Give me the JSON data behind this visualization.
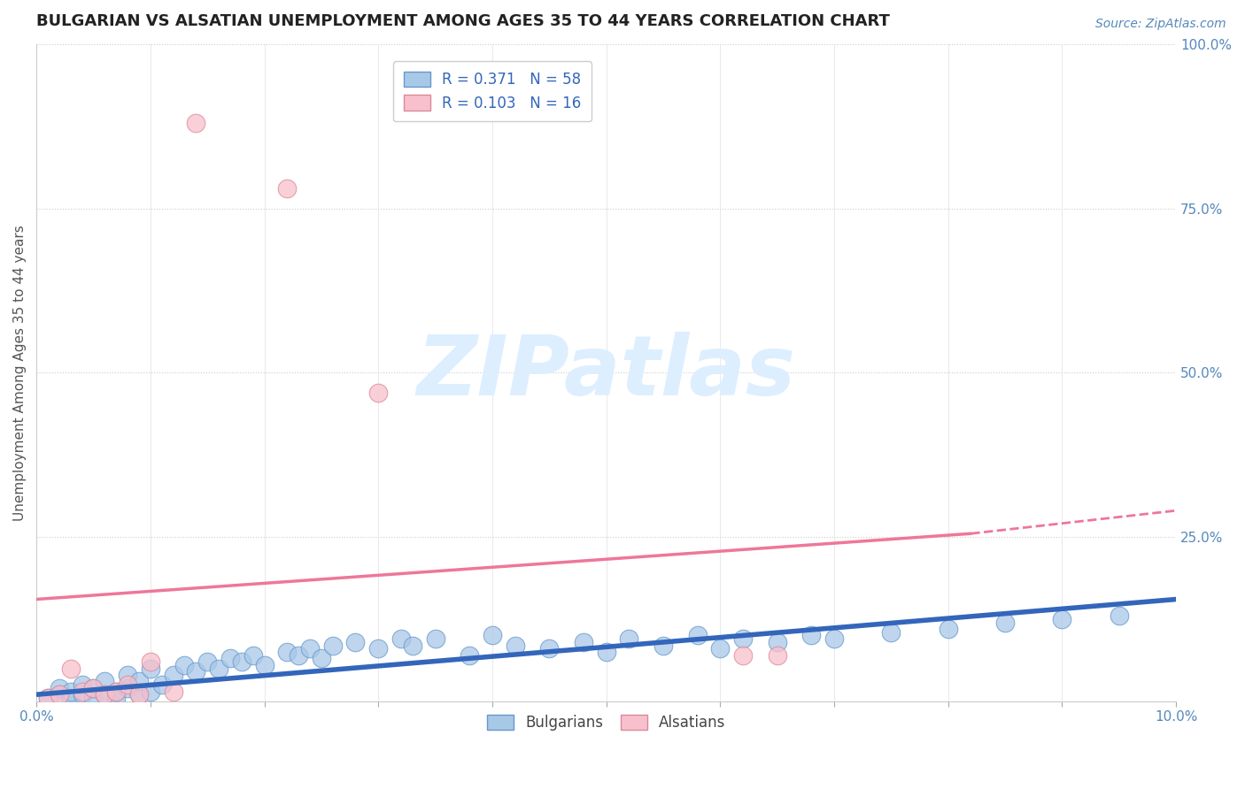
{
  "title": "BULGARIAN VS ALSATIAN UNEMPLOYMENT AMONG AGES 35 TO 44 YEARS CORRELATION CHART",
  "source_text": "Source: ZipAtlas.com",
  "ylabel": "Unemployment Among Ages 35 to 44 years",
  "xlim": [
    0.0,
    0.1
  ],
  "ylim": [
    0.0,
    1.0
  ],
  "yticks_right": [
    0.0,
    0.25,
    0.5,
    0.75,
    1.0
  ],
  "ytick_labels_right": [
    "",
    "25.0%",
    "50.0%",
    "75.0%",
    "100.0%"
  ],
  "legend_entries": [
    {
      "label": "R = 0.371   N = 58"
    },
    {
      "label": "R = 0.103   N = 16"
    }
  ],
  "watermark": "ZIPatlas",
  "watermark_color": "#ddeeff",
  "title_fontsize": 13,
  "axis_label_fontsize": 11,
  "tick_fontsize": 11,
  "blue_color": "#a8c8e8",
  "blue_edge": "#6699cc",
  "blue_line_color": "#3366bb",
  "pink_color": "#f8c0cc",
  "pink_edge": "#dd8899",
  "pink_line_color": "#ee7799",
  "blue_scatter": [
    [
      0.001,
      0.005
    ],
    [
      0.002,
      0.01
    ],
    [
      0.002,
      0.02
    ],
    [
      0.003,
      0.005
    ],
    [
      0.003,
      0.015
    ],
    [
      0.004,
      0.01
    ],
    [
      0.004,
      0.025
    ],
    [
      0.005,
      0.005
    ],
    [
      0.005,
      0.02
    ],
    [
      0.006,
      0.01
    ],
    [
      0.006,
      0.03
    ],
    [
      0.007,
      0.005
    ],
    [
      0.007,
      0.015
    ],
    [
      0.008,
      0.02
    ],
    [
      0.008,
      0.04
    ],
    [
      0.009,
      0.01
    ],
    [
      0.009,
      0.03
    ],
    [
      0.01,
      0.015
    ],
    [
      0.01,
      0.05
    ],
    [
      0.011,
      0.025
    ],
    [
      0.012,
      0.04
    ],
    [
      0.013,
      0.055
    ],
    [
      0.014,
      0.045
    ],
    [
      0.015,
      0.06
    ],
    [
      0.016,
      0.05
    ],
    [
      0.017,
      0.065
    ],
    [
      0.018,
      0.06
    ],
    [
      0.019,
      0.07
    ],
    [
      0.02,
      0.055
    ],
    [
      0.022,
      0.075
    ],
    [
      0.023,
      0.07
    ],
    [
      0.024,
      0.08
    ],
    [
      0.025,
      0.065
    ],
    [
      0.026,
      0.085
    ],
    [
      0.028,
      0.09
    ],
    [
      0.03,
      0.08
    ],
    [
      0.032,
      0.095
    ],
    [
      0.033,
      0.085
    ],
    [
      0.035,
      0.095
    ],
    [
      0.038,
      0.07
    ],
    [
      0.04,
      0.1
    ],
    [
      0.042,
      0.085
    ],
    [
      0.045,
      0.08
    ],
    [
      0.048,
      0.09
    ],
    [
      0.05,
      0.075
    ],
    [
      0.052,
      0.095
    ],
    [
      0.055,
      0.085
    ],
    [
      0.058,
      0.1
    ],
    [
      0.06,
      0.08
    ],
    [
      0.062,
      0.095
    ],
    [
      0.065,
      0.09
    ],
    [
      0.068,
      0.1
    ],
    [
      0.07,
      0.095
    ],
    [
      0.075,
      0.105
    ],
    [
      0.08,
      0.11
    ],
    [
      0.085,
      0.12
    ],
    [
      0.09,
      0.125
    ],
    [
      0.095,
      0.13
    ]
  ],
  "pink_scatter": [
    [
      0.001,
      0.005
    ],
    [
      0.002,
      0.01
    ],
    [
      0.003,
      0.05
    ],
    [
      0.004,
      0.015
    ],
    [
      0.005,
      0.02
    ],
    [
      0.006,
      0.01
    ],
    [
      0.007,
      0.015
    ],
    [
      0.008,
      0.025
    ],
    [
      0.009,
      0.01
    ],
    [
      0.01,
      0.06
    ],
    [
      0.012,
      0.015
    ],
    [
      0.014,
      0.88
    ],
    [
      0.022,
      0.78
    ],
    [
      0.03,
      0.47
    ],
    [
      0.062,
      0.07
    ],
    [
      0.065,
      0.07
    ]
  ],
  "blue_line": [
    [
      0.0,
      0.01
    ],
    [
      0.1,
      0.155
    ]
  ],
  "pink_line_solid": [
    [
      0.0,
      0.155
    ],
    [
      0.082,
      0.255
    ]
  ],
  "pink_line_dashed": [
    [
      0.082,
      0.255
    ],
    [
      0.1,
      0.29
    ]
  ]
}
